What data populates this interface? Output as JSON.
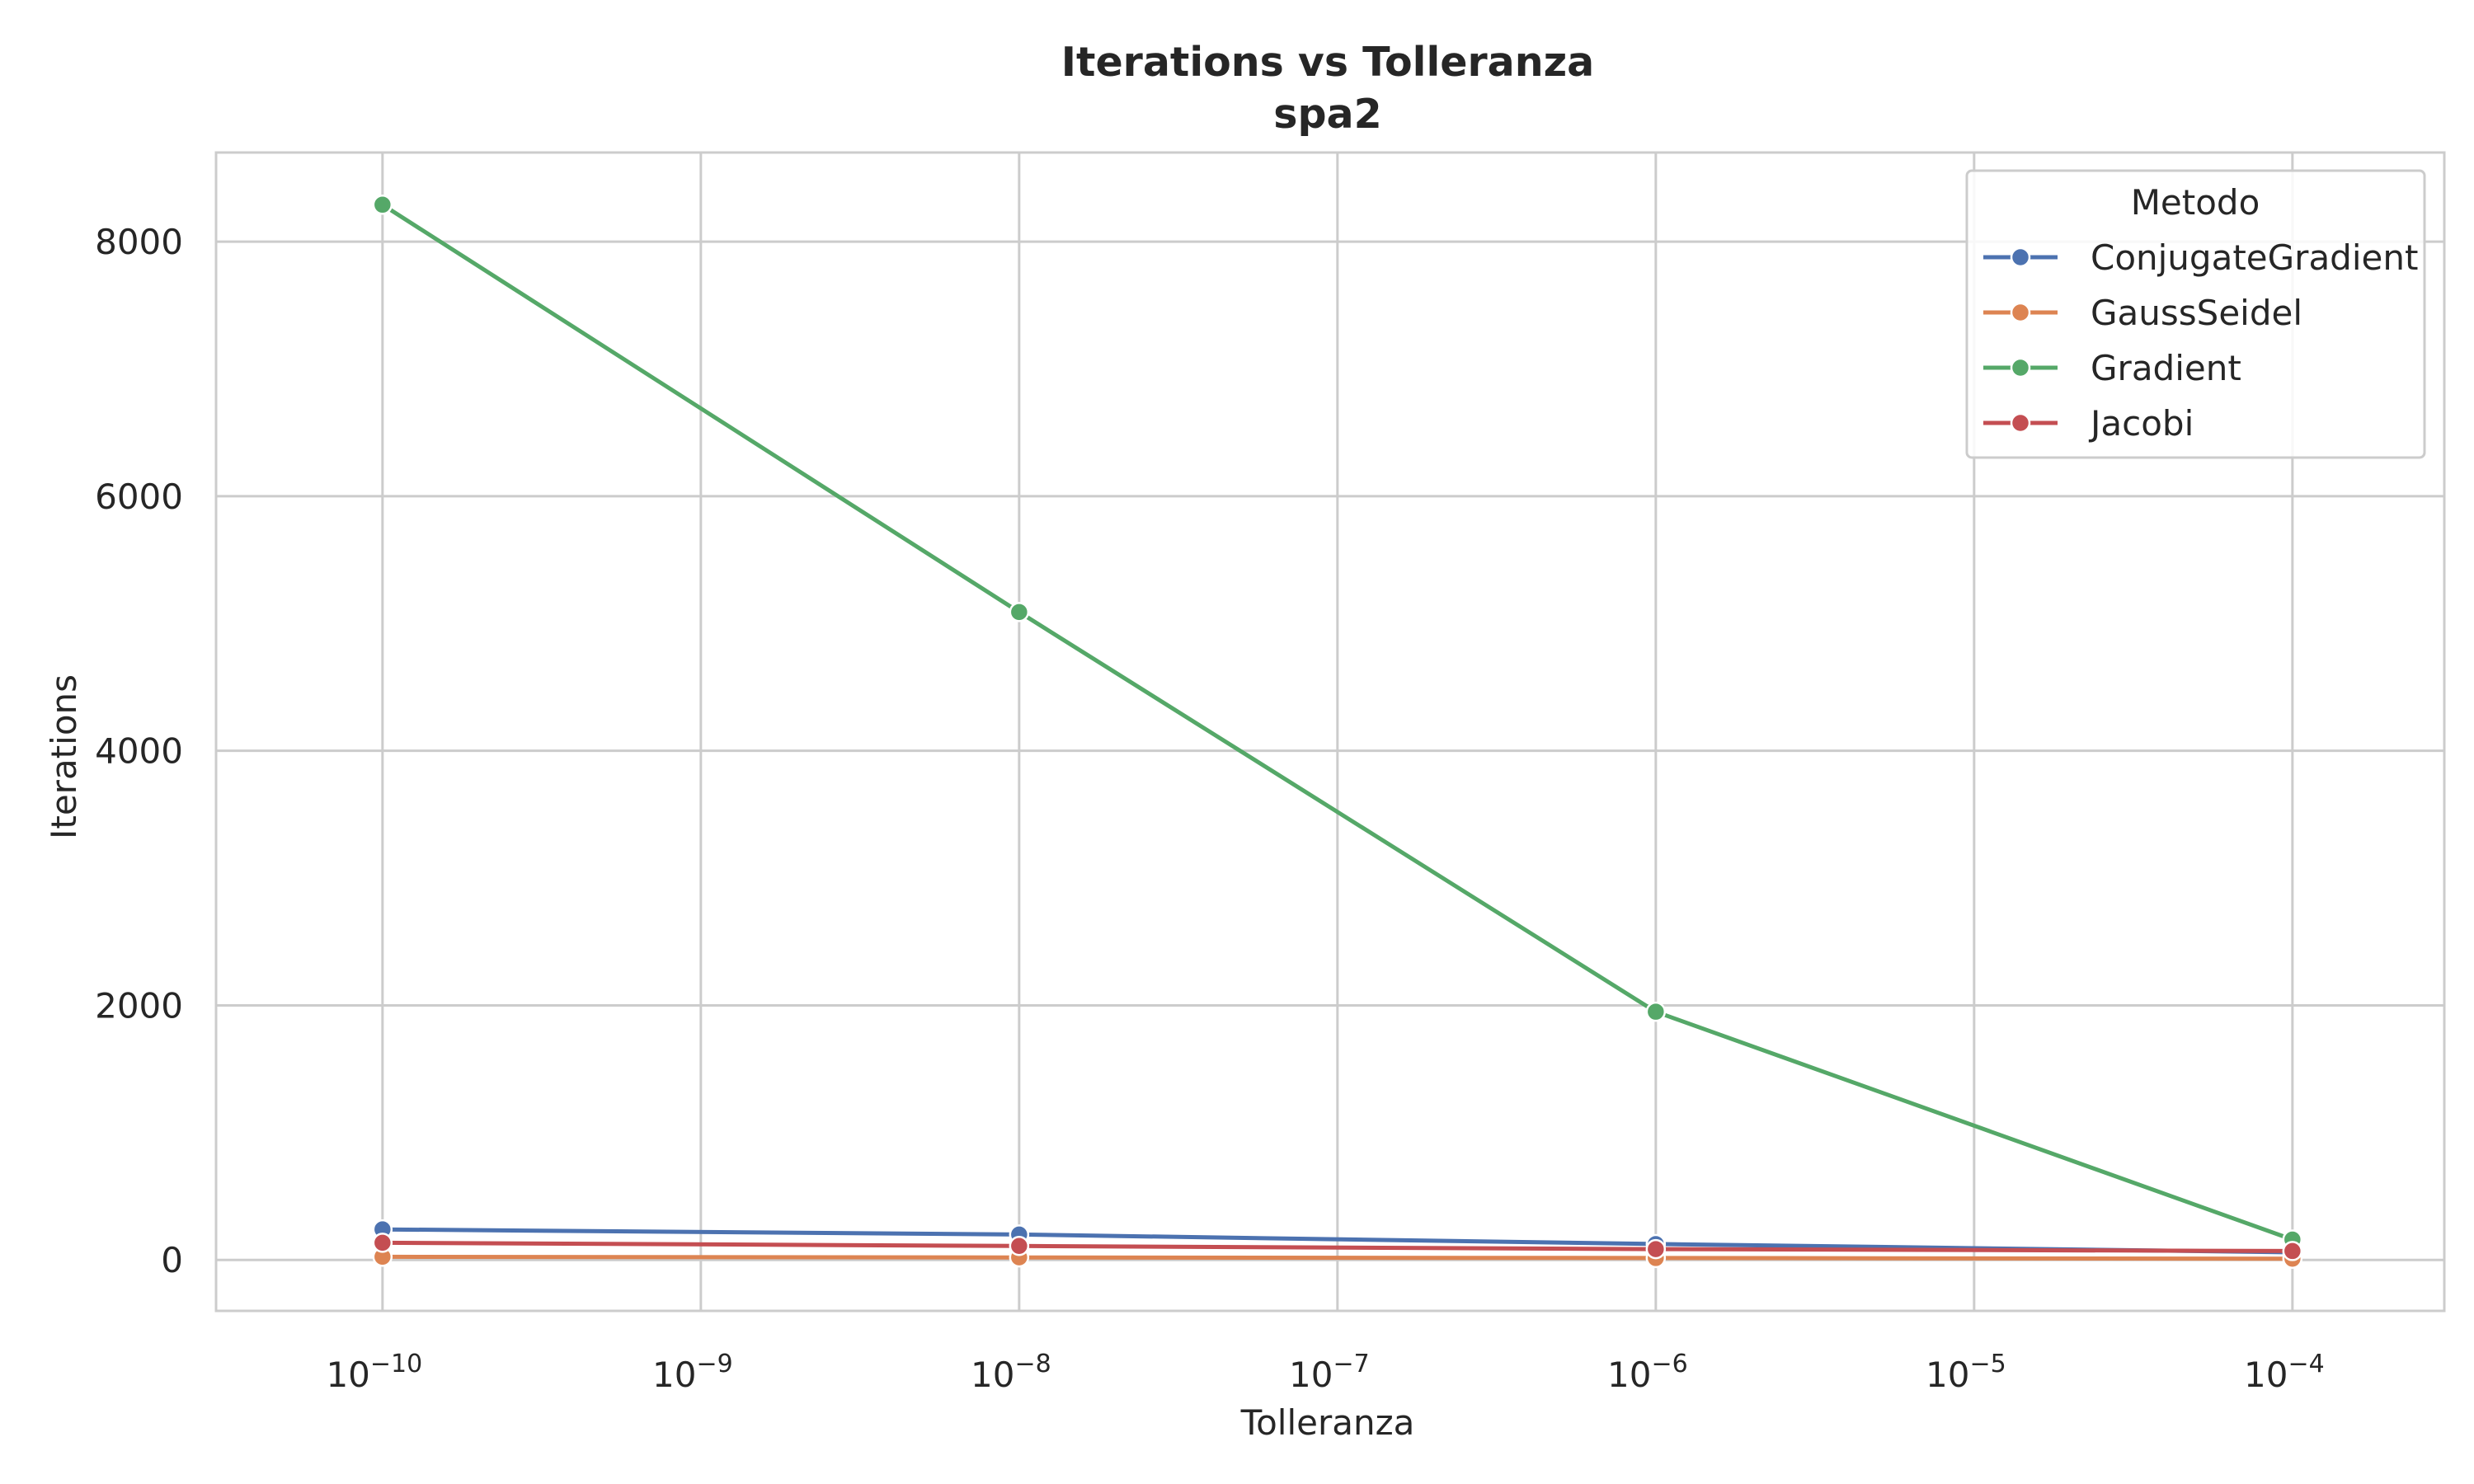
{
  "chart_data": {
    "type": "line",
    "title": "Iterations vs Tolleranza",
    "subtitle": "spa2",
    "xlabel": "Tolleranza",
    "ylabel": "Iterations",
    "xscale": "log",
    "xlim": [
      3e-11,
      0.0003
    ],
    "ylim": [
      -400,
      8700
    ],
    "x_ticks": [
      {
        "value": 1e-10,
        "base": "10",
        "exp": "−10"
      },
      {
        "value": 1e-09,
        "base": "10",
        "exp": "−9"
      },
      {
        "value": 1e-08,
        "base": "10",
        "exp": "−8"
      },
      {
        "value": 1e-07,
        "base": "10",
        "exp": "−7"
      },
      {
        "value": 1e-06,
        "base": "10",
        "exp": "−6"
      },
      {
        "value": 1e-05,
        "base": "10",
        "exp": "−5"
      },
      {
        "value": 0.0001,
        "base": "10",
        "exp": "−4"
      }
    ],
    "y_ticks": [
      {
        "value": 0,
        "label": "0"
      },
      {
        "value": 2000,
        "label": "2000"
      },
      {
        "value": 4000,
        "label": "4000"
      },
      {
        "value": 6000,
        "label": "6000"
      },
      {
        "value": 8000,
        "label": "8000"
      }
    ],
    "grid": true,
    "x": [
      1e-10,
      1e-08,
      1e-06,
      0.0001
    ],
    "series": [
      {
        "name": "ConjugateGradient",
        "color": "#4c72b0",
        "values": [
          240,
          200,
          125,
          60
        ]
      },
      {
        "name": "GaussSeidel",
        "color": "#dd8452",
        "values": [
          25,
          20,
          15,
          10
        ]
      },
      {
        "name": "Gradient",
        "color": "#55a868",
        "values": [
          8290,
          5090,
          1950,
          160
        ]
      },
      {
        "name": "Jacobi",
        "color": "#c44e52",
        "values": [
          135,
          110,
          85,
          70
        ]
      }
    ],
    "legend": {
      "title": "Metodo",
      "position": "top-right"
    }
  }
}
